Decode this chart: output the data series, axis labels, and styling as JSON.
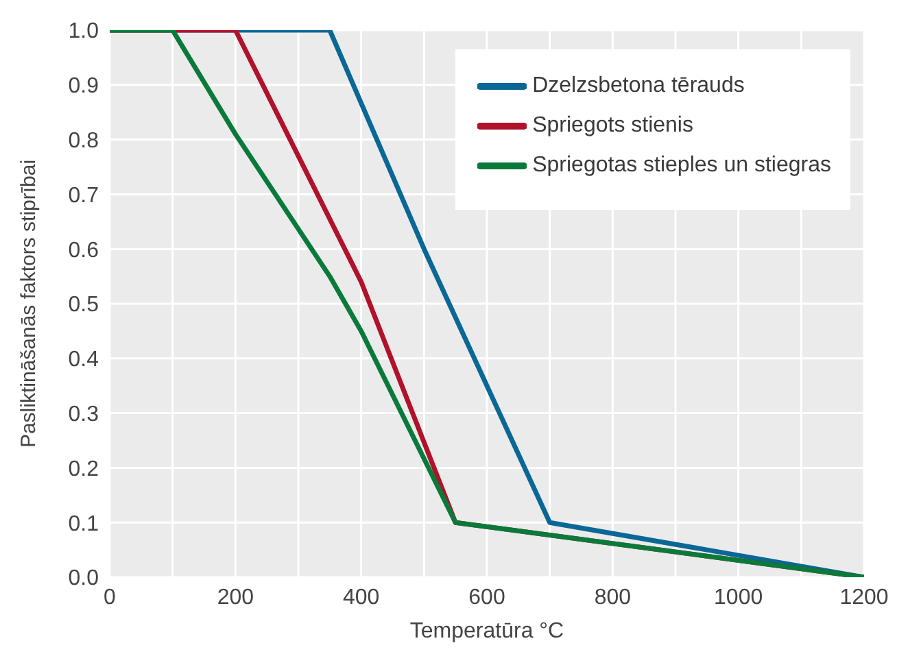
{
  "chart_data": {
    "type": "line",
    "xlabel": "Temperatūra °C",
    "ylabel": "Pasliktināšanās faktors stiprībai",
    "xlim": [
      0,
      1200
    ],
    "ylim": [
      0,
      1
    ],
    "xticks": [
      0,
      {
        "value": 100,
        "label": null
      },
      200,
      {
        "value": 300,
        "label": null
      },
      400,
      {
        "value": 500,
        "label": null
      },
      600,
      {
        "value": 700,
        "label": null
      },
      800,
      {
        "value": 900,
        "label": null
      },
      1000,
      {
        "value": 1100,
        "label": null
      },
      1200
    ],
    "yticks": [
      {
        "value": 0,
        "label": "0.0"
      },
      0.1,
      0.2,
      0.3,
      0.4,
      0.5,
      0.6,
      0.7,
      0.8,
      0.9,
      {
        "value": 1,
        "label": "1.0"
      }
    ],
    "grid": true,
    "legend": "top right",
    "marker": "none",
    "line_style": "solid",
    "series": [
      {
        "name": "Dzelzsbetona tērauds",
        "color": "#0a6796",
        "x": [
          0,
          350,
          500,
          700,
          1200
        ],
        "values": [
          1,
          1,
          0.6,
          0.1,
          0
        ]
      },
      {
        "name": "Spriegots stienis",
        "color": "#b0122a",
        "x": [
          0,
          200,
          400,
          550,
          1200
        ],
        "values": [
          1,
          1,
          0.54,
          0.1,
          0
        ]
      },
      {
        "name": "Spriegotas stieples un stiegras",
        "color": "#0a7a3a",
        "x": [
          0,
          100,
          200,
          350,
          400,
          550,
          1200
        ],
        "values": [
          1,
          1,
          0.81,
          0.55,
          0.45,
          0.1,
          0
        ]
      }
    ]
  }
}
